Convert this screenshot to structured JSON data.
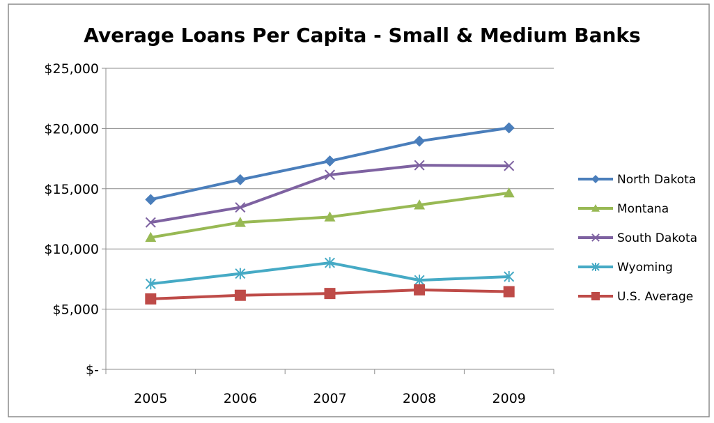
{
  "chart_data": {
    "type": "line",
    "title": "Average Loans Per Capita - Small & Medium Banks",
    "xlabel": "",
    "ylabel": "",
    "categories": [
      "2005",
      "2006",
      "2007",
      "2008",
      "2009"
    ],
    "ylim": [
      0,
      25000
    ],
    "y_ticks": [
      0,
      5000,
      10000,
      15000,
      20000,
      25000
    ],
    "y_tick_labels": [
      "$-",
      "$5,000",
      "$10,000",
      "$15,000",
      "$20,000",
      "$25,000"
    ],
    "grid": "horizontal",
    "legend_position": "right",
    "series": [
      {
        "name": "North Dakota",
        "color": "#4a7ebb",
        "marker": "diamond",
        "values": [
          14100,
          15750,
          17300,
          18950,
          20050
        ]
      },
      {
        "name": "Montana",
        "color": "#98b954",
        "marker": "triangle",
        "values": [
          10950,
          12200,
          12650,
          13650,
          14650
        ]
      },
      {
        "name": "South Dakota",
        "color": "#7e62a1",
        "marker": "x",
        "values": [
          12200,
          13450,
          16150,
          16950,
          16900
        ]
      },
      {
        "name": "Wyoming",
        "color": "#46aac5",
        "marker": "asterisk",
        "values": [
          7100,
          7950,
          8850,
          7400,
          7700
        ]
      },
      {
        "name": "U.S. Average",
        "color": "#be4b48",
        "marker": "square",
        "values": [
          5850,
          6150,
          6300,
          6600,
          6450
        ]
      }
    ]
  }
}
